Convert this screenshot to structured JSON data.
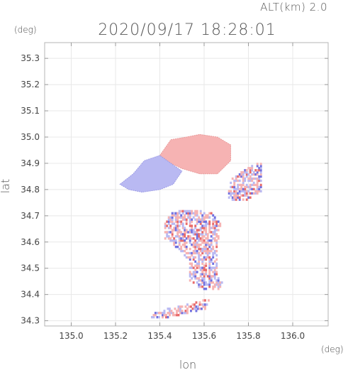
{
  "header": {
    "altitude_label": "ALT(km) 2.0",
    "datetime": "2020/09/17 18:28:01",
    "y_unit": "(deg)",
    "x_unit": "(deg)"
  },
  "chart_data": {
    "type": "heatmap",
    "title": "2020/09/17 18:28:01",
    "xlabel": "lon",
    "ylabel": "lat",
    "x_unit": "(deg)",
    "y_unit": "(deg)",
    "xlim": [
      134.88,
      136.16
    ],
    "ylim": [
      34.28,
      35.36
    ],
    "x_ticks": [
      135.0,
      135.2,
      135.4,
      135.6,
      135.8,
      136.0
    ],
    "x_tick_labels": [
      "135.0",
      "135.2",
      "135.4",
      "135.6",
      "135.8",
      "136.0"
    ],
    "y_ticks": [
      34.3,
      34.4,
      34.5,
      34.6,
      34.7,
      34.8,
      34.9,
      35.0,
      35.1,
      35.2,
      35.3
    ],
    "y_tick_labels": [
      "34.3",
      "34.4",
      "34.5",
      "34.6",
      "34.7",
      "34.8",
      "34.9",
      "35.0",
      "35.1",
      "35.2",
      "35.3"
    ],
    "grid": true,
    "colors": {
      "positive": "#f6b3b3",
      "negative": "#b9b9f2",
      "strong_positive": "#e86a6a",
      "strong_negative": "#7070e0"
    },
    "regions": [
      {
        "name": "north-warm-patch",
        "sign": "positive",
        "polygon": [
          [
            135.4,
            34.93
          ],
          [
            135.45,
            34.99
          ],
          [
            135.52,
            35.0
          ],
          [
            135.58,
            35.01
          ],
          [
            135.66,
            35.0
          ],
          [
            135.72,
            34.97
          ],
          [
            135.72,
            34.91
          ],
          [
            135.66,
            34.86
          ],
          [
            135.58,
            34.86
          ],
          [
            135.5,
            34.88
          ],
          [
            135.45,
            34.9
          ]
        ]
      },
      {
        "name": "west-cool-patch",
        "sign": "negative",
        "polygon": [
          [
            135.22,
            34.82
          ],
          [
            135.28,
            34.86
          ],
          [
            135.33,
            34.91
          ],
          [
            135.4,
            34.93
          ],
          [
            135.45,
            34.9
          ],
          [
            135.5,
            34.87
          ],
          [
            135.46,
            34.82
          ],
          [
            135.4,
            34.8
          ],
          [
            135.32,
            34.79
          ],
          [
            135.26,
            34.8
          ]
        ]
      },
      {
        "name": "south-mixed-strip",
        "sign": "mixed",
        "polygon": [
          [
            135.45,
            34.71
          ],
          [
            135.53,
            34.72
          ],
          [
            135.63,
            34.71
          ],
          [
            135.67,
            34.67
          ],
          [
            135.66,
            34.58
          ],
          [
            135.66,
            34.48
          ],
          [
            135.68,
            34.44
          ],
          [
            135.66,
            34.41
          ],
          [
            135.58,
            34.42
          ],
          [
            135.53,
            34.45
          ],
          [
            135.53,
            34.52
          ],
          [
            135.48,
            34.57
          ],
          [
            135.42,
            34.61
          ],
          [
            135.42,
            34.67
          ]
        ]
      },
      {
        "name": "east-scattered-echoes",
        "sign": "mixed",
        "polygon": [
          [
            135.72,
            34.84
          ],
          [
            135.86,
            34.91
          ],
          [
            135.86,
            34.79
          ],
          [
            135.78,
            34.75
          ],
          [
            135.7,
            34.76
          ]
        ]
      },
      {
        "name": "southwest-tail",
        "sign": "mixed",
        "polygon": [
          [
            135.36,
            34.33
          ],
          [
            135.48,
            34.35
          ],
          [
            135.62,
            34.38
          ],
          [
            135.6,
            34.34
          ],
          [
            135.44,
            34.31
          ],
          [
            135.36,
            34.31
          ]
        ]
      }
    ]
  }
}
